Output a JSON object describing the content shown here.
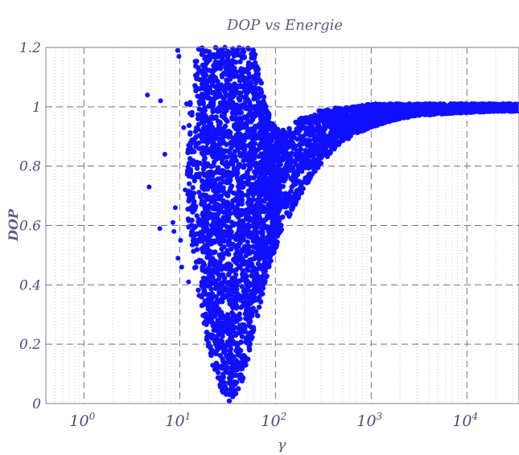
{
  "chart_data": {
    "type": "scatter",
    "title": "DOP vs Energie",
    "xlabel": "γ",
    "ylabel": "DOP",
    "x_scale": "log",
    "xlim": [
      0.4,
      35000
    ],
    "ylim": [
      0,
      1.2
    ],
    "grid": true,
    "minor_grid": true,
    "y_ticks": [
      {
        "value": 0,
        "label": "0"
      },
      {
        "value": 0.2,
        "label": "0.2"
      },
      {
        "value": 0.4,
        "label": "0.4"
      },
      {
        "value": 0.6,
        "label": "0.6"
      },
      {
        "value": 0.8,
        "label": "0.8"
      },
      {
        "value": 1.0,
        "label": "1"
      },
      {
        "value": 1.2,
        "label": "1.2"
      }
    ],
    "x_ticks": [
      {
        "value": 1,
        "base": "10",
        "exp": "0"
      },
      {
        "value": 10,
        "base": "10",
        "exp": "1"
      },
      {
        "value": 100,
        "base": "10",
        "exp": "2"
      },
      {
        "value": 1000,
        "base": "10",
        "exp": "3"
      },
      {
        "value": 10000,
        "base": "10",
        "exp": "4"
      }
    ],
    "series": [
      {
        "color": "#1010ff",
        "marker": "dot",
        "envelope": {
          "gamma": [
            9,
            10,
            12,
            14,
            16,
            18,
            20,
            23,
            26,
            30,
            35,
            40,
            46,
            53,
            60,
            70,
            80,
            90,
            100,
            110,
            130,
            150,
            180,
            220,
            260,
            300,
            400,
            500,
            700,
            1000,
            1500,
            2000,
            3000,
            5000,
            10000,
            20000,
            35000
          ],
          "dop_low": [
            null,
            null,
            0.62,
            0.48,
            0.36,
            0.26,
            0.18,
            0.11,
            0.06,
            0.02,
            0.0,
            0.02,
            0.08,
            0.16,
            0.24,
            0.34,
            0.42,
            0.48,
            0.52,
            0.56,
            0.61,
            0.65,
            0.7,
            0.74,
            0.78,
            0.81,
            0.85,
            0.88,
            0.91,
            0.93,
            0.95,
            0.96,
            0.97,
            0.975,
            0.98,
            0.985,
            0.985
          ],
          "dop_high": [
            null,
            null,
            0.95,
            1.15,
            1.2,
            1.2,
            1.2,
            1.2,
            1.2,
            1.2,
            1.2,
            1.2,
            1.2,
            1.2,
            1.2,
            1.1,
            1.0,
            0.96,
            0.93,
            0.92,
            0.93,
            0.95,
            0.96,
            0.97,
            0.98,
            0.99,
            0.995,
            1.0,
            1.0,
            1.01,
            1.01,
            1.01,
            1.01,
            1.01,
            1.01,
            1.01,
            1.01
          ]
        },
        "outliers": [
          [
            4.6,
            1.04
          ],
          [
            4.8,
            0.73
          ],
          [
            6.3,
            1.02
          ],
          [
            7.0,
            0.84
          ],
          [
            6.2,
            0.59
          ],
          [
            8.5,
            0.61
          ],
          [
            8.7,
            0.58
          ],
          [
            9.5,
            1.19
          ],
          [
            9.8,
            1.17
          ],
          [
            9.0,
            0.66
          ],
          [
            10.2,
            0.55
          ],
          [
            11.0,
            0.93
          ],
          [
            11.8,
            1.01
          ],
          [
            10.5,
            0.46
          ],
          [
            11.4,
            0.72
          ],
          [
            9.6,
            0.49
          ],
          [
            12.4,
            0.41
          ]
        ]
      }
    ]
  }
}
